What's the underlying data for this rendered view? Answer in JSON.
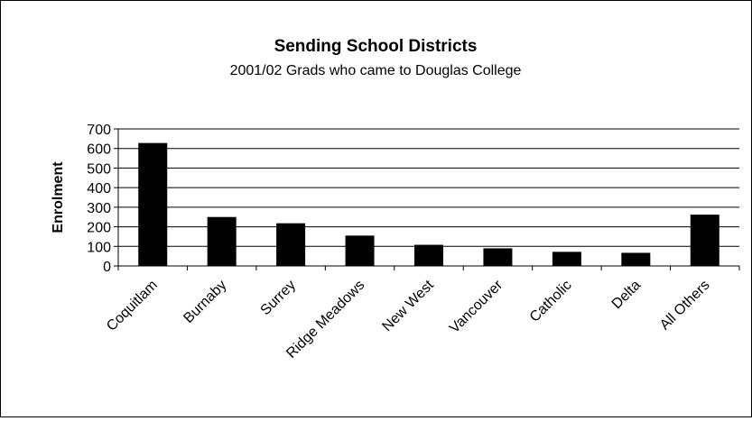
{
  "chart_data": {
    "type": "bar",
    "title": "Sending School Districts",
    "subtitle": "2001/02 Grads who came to Douglas College",
    "xlabel": "",
    "ylabel": "Enrolment",
    "ylim": [
      0,
      700
    ],
    "yticks": [
      0,
      100,
      200,
      300,
      400,
      500,
      600,
      700
    ],
    "grid": true,
    "legend": "none",
    "categories": [
      "Coquitlam",
      "Burnaby",
      "Surrey",
      "Ridge Meadows",
      "New West",
      "Vancouver",
      "Catholic",
      "Delta",
      "All Others"
    ],
    "values": [
      628,
      250,
      218,
      155,
      108,
      90,
      72,
      67,
      262
    ],
    "bar_color": "#000000"
  }
}
